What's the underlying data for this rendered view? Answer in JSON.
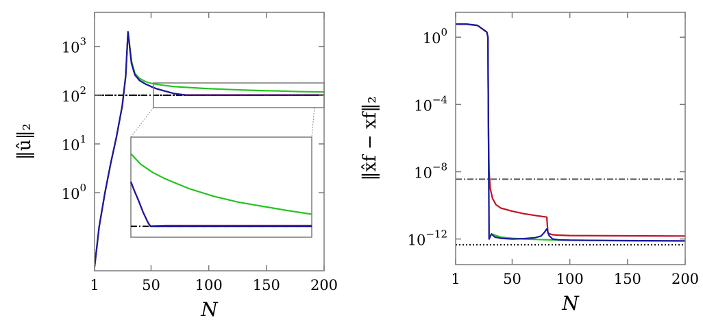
{
  "colors": {
    "green": "#22c41e",
    "red": "#c0141e",
    "blue": "#1a1aa0",
    "ref_black": "#000000",
    "ref_gray": "#555555",
    "frame": "#7a7a7a"
  },
  "chart_data": [
    {
      "type": "line",
      "xlabel": "N",
      "ylabel": "‖û‖₂",
      "xlim": [
        1,
        200
      ],
      "ylim": [
        0.025,
        5000
      ],
      "y_scale": "log",
      "xticks": [
        1,
        50,
        100,
        150,
        200
      ],
      "xtick_labels": [
        "1",
        "50",
        "100",
        "150",
        "200"
      ],
      "yticks": [
        1,
        10,
        100,
        1000
      ],
      "ytick_labels": [
        "10",
        "10",
        "10",
        "10"
      ],
      "ytick_exponents": [
        "0",
        "1",
        "2",
        "3"
      ],
      "grid": false,
      "series": [
        {
          "color": "green",
          "x": [
            1,
            5,
            10,
            15,
            20,
            25,
            28,
            30,
            33,
            36,
            40,
            45,
            50,
            60,
            70,
            80,
            90,
            100,
            120,
            140,
            160,
            180,
            200
          ],
          "y": [
            0.03,
            0.2,
            1.0,
            4,
            14,
            60,
            250,
            2000,
            500,
            280,
            220,
            190,
            175,
            160,
            150,
            145,
            140,
            136,
            130,
            125,
            122,
            118,
            116
          ]
        },
        {
          "color": "red",
          "x": [
            1,
            5,
            10,
            15,
            20,
            25,
            28,
            30,
            33,
            36,
            40,
            45,
            50,
            55,
            60,
            65,
            70,
            75,
            80,
            100,
            150,
            200
          ],
          "y": [
            0.03,
            0.2,
            1.0,
            4,
            14,
            60,
            250,
            2000,
            450,
            260,
            200,
            170,
            150,
            135,
            125,
            116,
            108,
            104,
            101,
            101,
            101,
            101
          ]
        },
        {
          "color": "blue",
          "x": [
            1,
            5,
            10,
            15,
            20,
            25,
            28,
            30,
            33,
            36,
            40,
            45,
            50,
            55,
            60,
            65,
            70,
            75,
            80,
            100,
            150,
            200
          ],
          "y": [
            0.03,
            0.2,
            1.0,
            4,
            14,
            60,
            250,
            2000,
            450,
            260,
            200,
            170,
            150,
            135,
            125,
            116,
            108,
            104,
            100,
            100,
            100,
            100
          ]
        }
      ],
      "reference_lines": [
        {
          "y": 100,
          "style": "dashdot",
          "color": "ref_black"
        },
        {
          "y": 100,
          "style": "dotted",
          "color": "ref_black"
        }
      ],
      "inset": {
        "xlim": [
          52,
          200
        ],
        "ylim": [
          96,
          120
        ],
        "series": [
          {
            "color": "green",
            "x": [
              52,
              60,
              70,
              80,
              90,
              100,
              120,
              140,
              160,
              180,
              200
            ],
            "y": [
              116,
              113.5,
              111.5,
              110,
              108.8,
              107.6,
              105.8,
              104.4,
              103.4,
              102.4,
              101.5
            ]
          },
          {
            "color": "red",
            "x": [
              52,
              55,
              58,
              62,
              66,
              68,
              80,
              100,
              150,
              200
            ],
            "y": [
              109.3,
              107,
              105,
              102,
              99.5,
              98.7,
              98.8,
              98.8,
              98.8,
              98.8
            ]
          },
          {
            "color": "blue",
            "x": [
              52,
              55,
              58,
              62,
              66,
              68,
              80,
              100,
              150,
              200
            ],
            "y": [
              109.3,
              107,
              105,
              102,
              99.5,
              98.6,
              98.6,
              98.6,
              98.6,
              98.6
            ]
          }
        ],
        "reference_y": 98.6
      }
    },
    {
      "type": "line",
      "xlabel": "N",
      "ylabel": "‖x̂f − xf‖₂",
      "xlim": [
        1,
        200
      ],
      "ylim": [
        3e-14,
        30
      ],
      "y_scale": "log",
      "xticks": [
        1,
        50,
        100,
        150,
        200
      ],
      "xtick_labels": [
        "1",
        "50",
        "100",
        "150",
        "200"
      ],
      "yticks": [
        1e-12,
        1e-08,
        0.0001,
        1
      ],
      "ytick_labels": [
        "10",
        "10",
        "10",
        "10"
      ],
      "ytick_exponents": [
        "−12",
        "−8",
        "−4",
        "0"
      ],
      "grid": false,
      "series": [
        {
          "color": "green",
          "x": [
            1,
            10,
            20,
            28,
            29,
            29.5,
            30,
            32,
            40,
            50,
            60,
            80,
            100,
            150,
            200
          ],
          "y": [
            6,
            6,
            5,
            2,
            1.0,
            1e-06,
            1e-12,
            2e-12,
            1.3e-12,
            1.1e-12,
            1e-12,
            9e-13,
            8.5e-13,
            7.8e-13,
            7.5e-13
          ]
        },
        {
          "color": "red",
          "x": [
            1,
            10,
            20,
            28,
            29,
            29.5,
            30,
            31,
            33,
            36,
            40,
            50,
            60,
            70,
            80,
            81,
            85,
            90,
            100,
            150,
            200
          ],
          "y": [
            6,
            6,
            5,
            2,
            1.0,
            1e-06,
            1e-08,
            1e-09,
            2.5e-10,
            1.1e-10,
            7e-11,
            4.5e-11,
            3.2e-11,
            2.5e-11,
            2e-11,
            2.2e-12,
            1.8e-12,
            1.7e-12,
            1.6e-12,
            1.55e-12,
            1.5e-12
          ]
        },
        {
          "color": "blue",
          "x": [
            1,
            10,
            20,
            28,
            29,
            29.5,
            30,
            32,
            35,
            40,
            50,
            60,
            70,
            75,
            78,
            80,
            82,
            85,
            90,
            100,
            150,
            200
          ],
          "y": [
            6,
            6,
            5,
            2,
            1.0,
            1e-06,
            1e-12,
            2e-12,
            1.3e-12,
            1.1e-12,
            1e-12,
            1.05e-12,
            1.2e-12,
            1.5e-12,
            2.5e-12,
            4e-12,
            1.6e-12,
            1e-12,
            9e-13,
            8.5e-13,
            8e-13,
            7.8e-13
          ]
        }
      ],
      "reference_lines": [
        {
          "y": 3.6e-09,
          "style": "dashdot",
          "color": "ref_gray"
        },
        {
          "y": 4.5e-13,
          "style": "dotted",
          "color": "ref_black"
        }
      ]
    }
  ]
}
